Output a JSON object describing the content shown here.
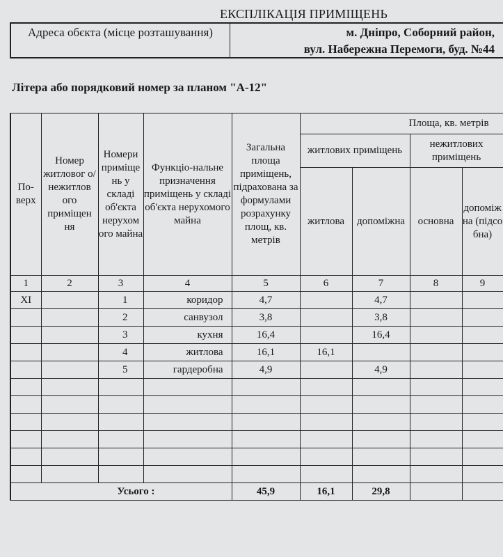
{
  "title": "ЕКСПЛІКАЦІЯ ПРИМІЩЕНЬ",
  "address": {
    "label": "Адреса обєкта  (місце розташування)",
    "value_line1": "м. Дніпро, Соборний район,",
    "value_line2": "вул. Набережна Перемоги, буд. №44"
  },
  "litera": "Літера або порядковий номер за планом \"А-12\"",
  "table": {
    "headers": {
      "floor": "По-верх",
      "unit_no": "Номер житловог о/ нежитлов ого приміщен ня",
      "room_no": "Номери приміще нь у складі об'єкта нерухом ого майна",
      "function": "Функціо-нальне призначення приміщень у складі об'єкта нерухомого майна",
      "total_area": "Загальна площа приміщень, підрахована за формулами розрахунку площ, кв. метрів",
      "area_group": "Площа, кв. метрів",
      "residential": "житлових приміщень",
      "nonresidential": "нежитлових приміщень",
      "living": "житлова",
      "auxiliary": "допоміжна",
      "main": "основна",
      "aux_nonres": "допоміжна (підсобна)"
    },
    "column_numbers": [
      "1",
      "2",
      "3",
      "4",
      "5",
      "6",
      "7",
      "8",
      "9"
    ],
    "rows": [
      {
        "floor": "XI",
        "unit": "",
        "room": "1",
        "function": "коридор",
        "total": "4,7",
        "living": "",
        "aux": "4,7",
        "main": "",
        "aux2": ""
      },
      {
        "floor": "",
        "unit": "",
        "room": "2",
        "function": "санвузол",
        "total": "3,8",
        "living": "",
        "aux": "3,8",
        "main": "",
        "aux2": ""
      },
      {
        "floor": "",
        "unit": "",
        "room": "3",
        "function": "кухня",
        "total": "16,4",
        "living": "",
        "aux": "16,4",
        "main": "",
        "aux2": ""
      },
      {
        "floor": "",
        "unit": "",
        "room": "4",
        "function": "житлова",
        "total": "16,1",
        "living": "16,1",
        "aux": "",
        "main": "",
        "aux2": ""
      },
      {
        "floor": "",
        "unit": "",
        "room": "5",
        "function": "гардеробна",
        "total": "4,9",
        "living": "",
        "aux": "4,9",
        "main": "",
        "aux2": ""
      },
      {
        "floor": "",
        "unit": "",
        "room": "",
        "function": "",
        "total": "",
        "living": "",
        "aux": "",
        "main": "",
        "aux2": ""
      },
      {
        "floor": "",
        "unit": "",
        "room": "",
        "function": "",
        "total": "",
        "living": "",
        "aux": "",
        "main": "",
        "aux2": ""
      },
      {
        "floor": "",
        "unit": "",
        "room": "",
        "function": "",
        "total": "",
        "living": "",
        "aux": "",
        "main": "",
        "aux2": ""
      },
      {
        "floor": "",
        "unit": "",
        "room": "",
        "function": "",
        "total": "",
        "living": "",
        "aux": "",
        "main": "",
        "aux2": ""
      },
      {
        "floor": "",
        "unit": "",
        "room": "",
        "function": "",
        "total": "",
        "living": "",
        "aux": "",
        "main": "",
        "aux2": ""
      },
      {
        "floor": "",
        "unit": "",
        "room": "",
        "function": "",
        "total": "",
        "living": "",
        "aux": "",
        "main": "",
        "aux2": ""
      }
    ],
    "total": {
      "label": "Усього :",
      "total": "45,9",
      "living": "16,1",
      "aux": "29,8"
    }
  }
}
